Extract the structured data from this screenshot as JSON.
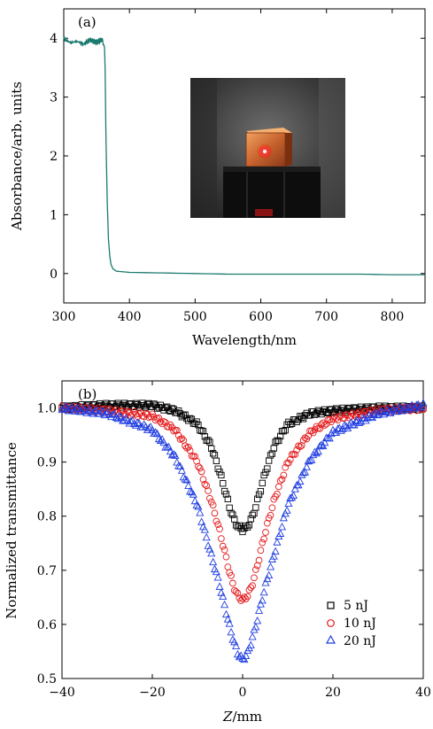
{
  "chart_data": [
    {
      "type": "line",
      "panel_label": "(a)",
      "xlabel": "Wavelength/nm",
      "ylabel": "Absorbance/arb. units",
      "xlim": [
        300,
        850
      ],
      "ylim": [
        -0.5,
        4.5
      ],
      "xticks": [
        300,
        400,
        500,
        600,
        700,
        800
      ],
      "yticks": [
        0,
        1,
        2,
        3,
        4
      ],
      "line_color": "#1a7a6e",
      "inset": "photo of an orange crystal cube with a red laser spot, on a black stand",
      "series": [
        {
          "x": [
            300,
            310,
            320,
            330,
            340,
            350,
            358,
            362,
            363,
            364,
            366,
            368,
            370,
            372,
            375,
            380,
            390,
            400,
            450,
            500,
            550,
            600,
            650,
            700,
            750,
            800,
            850
          ],
          "values": [
            4.0,
            3.92,
            3.95,
            3.9,
            3.97,
            3.93,
            3.98,
            3.85,
            3.5,
            2.5,
            1.3,
            0.6,
            0.3,
            0.15,
            0.08,
            0.04,
            0.03,
            0.02,
            0.01,
            0.0,
            -0.01,
            -0.01,
            -0.01,
            -0.01,
            -0.01,
            -0.02,
            -0.02
          ]
        }
      ]
    },
    {
      "type": "scatter",
      "panel_label": "(b)",
      "xlabel": "Z/mm",
      "ylabel": "Normalized transmittance",
      "xlim": [
        -40,
        40
      ],
      "ylim": [
        0.5,
        1.05
      ],
      "xticks": [
        -40,
        -20,
        0,
        20,
        40
      ],
      "xtick_labels": [
        "−40",
        "−20",
        "0",
        "20",
        "40"
      ],
      "yticks": [
        0.5,
        0.6,
        0.7,
        0.8,
        0.9,
        1.0
      ],
      "ytick_labels": [
        "0.5",
        "0.6",
        "0.7",
        "0.8",
        "0.9",
        "1.0"
      ],
      "legend_position": "lower-right",
      "series": [
        {
          "name": "5 nJ",
          "marker": "square",
          "color": "#000000",
          "x": [
            -40,
            -30,
            -20,
            -15,
            -10,
            -7,
            -5,
            -3,
            -2,
            -1,
            0,
            1,
            2,
            3,
            5,
            7,
            10,
            15,
            20,
            30,
            40
          ],
          "values": [
            1.0,
            1.005,
            1.005,
            0.995,
            0.97,
            0.93,
            0.88,
            0.82,
            0.795,
            0.78,
            0.775,
            0.78,
            0.795,
            0.82,
            0.88,
            0.93,
            0.97,
            0.99,
            0.995,
            1.0,
            1.0
          ]
        },
        {
          "name": "10 nJ",
          "marker": "circle",
          "color": "#e41a1c",
          "x": [
            -40,
            -30,
            -20,
            -15,
            -10,
            -7,
            -5,
            -3,
            -2,
            -1,
            0,
            1,
            2,
            3,
            5,
            7,
            10,
            15,
            20,
            30,
            40
          ],
          "values": [
            1.0,
            0.995,
            0.985,
            0.96,
            0.9,
            0.83,
            0.77,
            0.7,
            0.67,
            0.652,
            0.645,
            0.652,
            0.67,
            0.7,
            0.77,
            0.83,
            0.9,
            0.955,
            0.98,
            0.995,
            1.0
          ]
        },
        {
          "name": "20 nJ",
          "marker": "triangle",
          "color": "#1f3de0",
          "x": [
            -40,
            -30,
            -20,
            -15,
            -10,
            -7,
            -5,
            -3,
            -2,
            -1,
            0,
            1,
            2,
            3,
            5,
            7,
            10,
            15,
            20,
            30,
            40
          ],
          "values": [
            1.0,
            0.99,
            0.96,
            0.91,
            0.82,
            0.73,
            0.67,
            0.6,
            0.57,
            0.545,
            0.535,
            0.545,
            0.57,
            0.6,
            0.67,
            0.73,
            0.82,
            0.905,
            0.955,
            0.99,
            1.005
          ]
        }
      ]
    }
  ]
}
